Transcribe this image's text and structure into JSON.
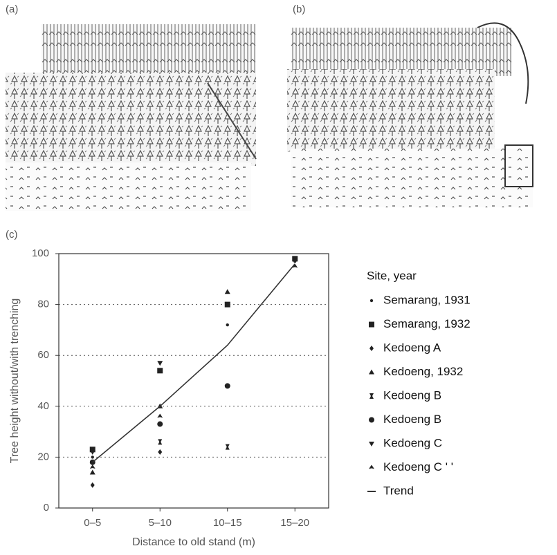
{
  "panel_labels": [
    "(a)",
    "(b)",
    "(c)"
  ],
  "chart_data": {
    "type": "scatter",
    "x_label": "Distance to old stand (m)",
    "y_label": "Tree height without/with trenching",
    "categories": [
      "0–5",
      "5–10",
      "10–15",
      "15–20"
    ],
    "ylim": [
      0,
      100
    ],
    "yticks": [
      0,
      20,
      40,
      60,
      80,
      100
    ],
    "grid": true,
    "legend_title": "Site, year",
    "series": [
      {
        "name": "Semarang, 1931",
        "marker": "dot",
        "color": "#222",
        "values": [
          20,
          null,
          72,
          97
        ]
      },
      {
        "name": "Semarang, 1932",
        "marker": "square",
        "color": "#222",
        "values": [
          23,
          54,
          80,
          98
        ]
      },
      {
        "name": "Kedoeng A",
        "marker": "diamond",
        "color": "#222",
        "values": [
          9,
          22,
          null,
          null
        ]
      },
      {
        "name": "Kedoeng, 1932",
        "marker": "triangle",
        "color": "#222",
        "values": [
          14,
          40,
          85,
          null
        ]
      },
      {
        "name": "Kedoeng B",
        "marker": "hourglass",
        "color": "#222",
        "values": [
          null,
          26,
          24,
          null
        ]
      },
      {
        "name": "Kedoeng B",
        "marker": "circle",
        "color": "#222",
        "values": [
          18,
          33,
          48,
          null
        ]
      },
      {
        "name": "Kedoeng C",
        "marker": "triangle-down",
        "color": "#222",
        "values": [
          22,
          57,
          80,
          null
        ]
      },
      {
        "name": "Kedoeng C ' '",
        "marker": "spade",
        "color": "#222",
        "values": [
          16,
          36,
          null,
          95
        ]
      },
      {
        "name": "Trend",
        "marker": "line",
        "color": "#333",
        "values": [
          18,
          40,
          64,
          96
        ]
      }
    ]
  }
}
